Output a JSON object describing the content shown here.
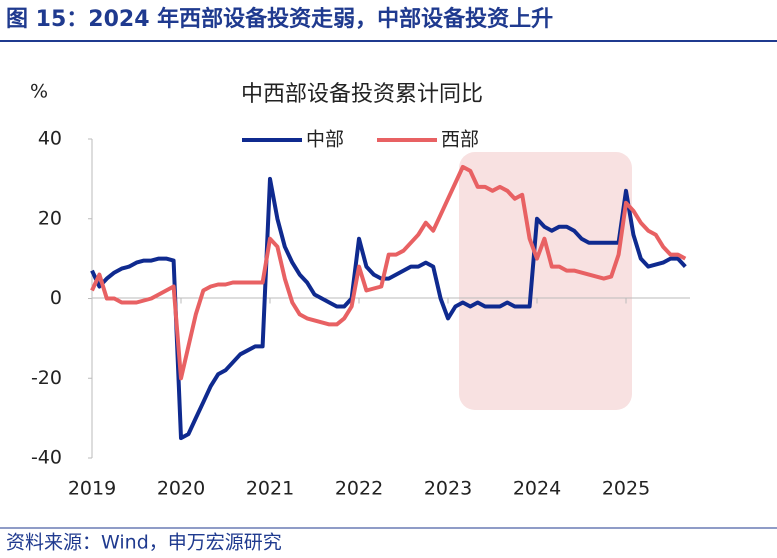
{
  "header": {
    "title": "图 15：2024 年西部设备投资走弱，中部设备投资上升"
  },
  "chart_data": {
    "type": "line",
    "title": "中西部设备投资累计同比",
    "y_label": "%",
    "categories": [
      "2019",
      null,
      null,
      null,
      null,
      null,
      null,
      null,
      null,
      null,
      null,
      null,
      "2020",
      null,
      null,
      null,
      null,
      null,
      null,
      null,
      null,
      null,
      null,
      null,
      "2021",
      null,
      null,
      null,
      null,
      null,
      null,
      null,
      null,
      null,
      null,
      null,
      "2022",
      null,
      null,
      null,
      null,
      null,
      null,
      null,
      null,
      null,
      null,
      null,
      "2023",
      null,
      null,
      null,
      null,
      null,
      null,
      null,
      null,
      null,
      null,
      null,
      "2024",
      null,
      null,
      null,
      null,
      null,
      null,
      null,
      null,
      null,
      null,
      null,
      "2025",
      null,
      null,
      null,
      null,
      null,
      null,
      null,
      null
    ],
    "series": [
      {
        "name": "中部",
        "color": "#0f2a8f",
        "values": [
          7,
          3,
          5,
          6.5,
          7.5,
          8,
          9,
          9.5,
          9.5,
          10,
          10,
          9.5,
          -35,
          -34,
          -30,
          -26,
          -22,
          -19,
          -18,
          -16,
          -14,
          -13,
          -12,
          -12,
          30,
          20,
          13,
          9,
          6,
          4,
          1,
          0,
          -1,
          -2,
          -2,
          0,
          15,
          8,
          6,
          5,
          5,
          6,
          7,
          8,
          8,
          9,
          8,
          0,
          -5,
          -2,
          -1,
          -2,
          -1,
          -2,
          -2,
          -2,
          -1,
          -2,
          -2,
          -2,
          20,
          18,
          17,
          18,
          18,
          17,
          15,
          14,
          14,
          14,
          14,
          14,
          27,
          16,
          10,
          8,
          8.5,
          9,
          10,
          10,
          8
        ]
      },
      {
        "name": "西部",
        "color": "#e86163",
        "values": [
          2,
          6,
          0,
          0,
          -1,
          -1,
          -1,
          -0.5,
          0,
          1,
          2,
          3,
          -20,
          -12,
          -4,
          2,
          3,
          3.5,
          3.5,
          4,
          4,
          4,
          4,
          4,
          15,
          13,
          5,
          -1,
          -4,
          -5,
          -5.5,
          -6,
          -6.5,
          -6.5,
          -5,
          -2,
          8,
          2,
          2.5,
          3,
          11,
          11,
          12,
          14,
          16,
          19,
          17,
          21,
          25,
          29,
          33,
          32,
          28,
          28,
          27,
          28,
          27,
          25,
          26,
          15,
          10,
          15,
          8,
          8,
          7,
          7,
          6.5,
          6,
          5.5,
          5,
          5.5,
          11,
          24,
          22,
          19,
          17,
          16,
          13,
          11,
          11,
          10
        ]
      }
    ],
    "ylim": [
      -40,
      40
    ],
    "yticks": [
      40,
      20,
      0,
      -20,
      -40
    ],
    "grid": false
  },
  "footer": {
    "source": "资料来源：Wind，申万宏源研究"
  }
}
